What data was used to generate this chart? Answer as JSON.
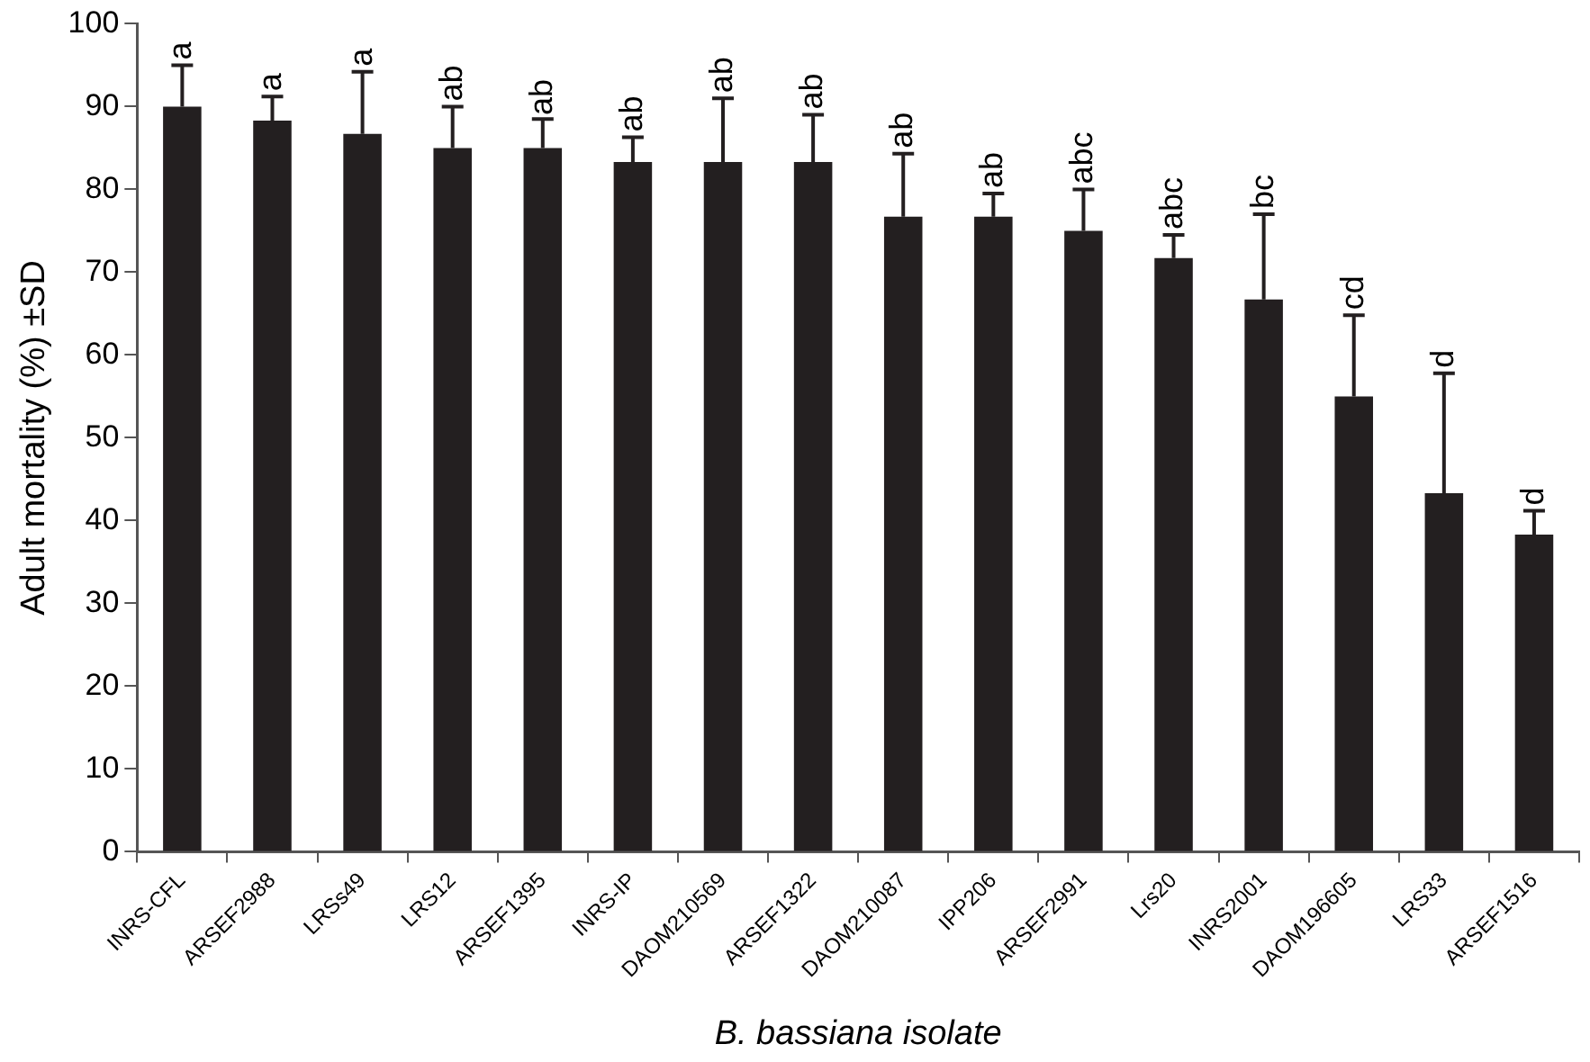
{
  "chart_data": {
    "type": "bar",
    "xlabel": "B. bassiana isolate",
    "ylabel": "Adult mortality (%) ±SD",
    "categories": [
      "INRS-CFL",
      "ARSEF2988",
      "LRSs49",
      "LRS12",
      "ARSEF1395",
      "INRS-IP",
      "DAOM210569",
      "ARSEF1322",
      "DAOM210087",
      "IPP206",
      "ARSEF2991",
      "Lrs20",
      "INRS2001",
      "DAOM196605",
      "LRS33",
      "ARSEF1516"
    ],
    "values": [
      90,
      88.3,
      86.7,
      85,
      85,
      83.3,
      83.3,
      83.3,
      76.7,
      76.7,
      75,
      71.7,
      66.7,
      55,
      43.3,
      38.3
    ],
    "errors": [
      5,
      2.9,
      7.5,
      5,
      3.5,
      3,
      7.7,
      5.7,
      7.6,
      2.8,
      5,
      2.8,
      10.3,
      9.8,
      14.5,
      2.9
    ],
    "color": "#231f20",
    "ylim": [
      0,
      100
    ],
    "yticks": [
      0,
      10,
      20,
      30,
      40,
      50,
      60,
      70,
      80,
      90,
      100
    ],
    "grid": false,
    "legend": false,
    "annotations": [
      {
        "text": "a",
        "x": "INRS-CFL",
        "y": 95
      },
      {
        "text": "a",
        "x": "ARSEF2988",
        "y": 91.2
      },
      {
        "text": "a",
        "x": "LRSs49",
        "y": 94.2
      },
      {
        "text": "ab",
        "x": "LRS12",
        "y": 90
      },
      {
        "text": "ab",
        "x": "ARSEF1395",
        "y": 88.3
      },
      {
        "text": "ab",
        "x": "INRS-IP",
        "y": 86.3
      },
      {
        "text": "ab",
        "x": "DAOM210569",
        "y": 91
      },
      {
        "text": "ab",
        "x": "ARSEF1322",
        "y": 89
      },
      {
        "text": "ab",
        "x": "DAOM210087",
        "y": 84.3
      },
      {
        "text": "ab",
        "x": "IPP206",
        "y": 79.5
      },
      {
        "text": "abc",
        "x": "ARSEF2991",
        "y": 80
      },
      {
        "text": "abc",
        "x": "Lrs20",
        "y": 74.5
      },
      {
        "text": "bc",
        "x": "INRS2001",
        "y": 77
      },
      {
        "text": "cd",
        "x": "DAOM196605",
        "y": 64.8
      },
      {
        "text": "d",
        "x": "LRS33",
        "y": 57.8
      },
      {
        "text": "d",
        "x": "ARSEF1516",
        "y": 41.2
      }
    ]
  }
}
